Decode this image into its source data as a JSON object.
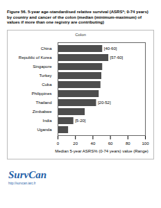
{
  "chart_data": {
    "type": "bar",
    "orientation": "horizontal",
    "title": "Figure 56. 5-year age-standardised relative survival (ASRS*; 0-74 years) by country and cancer of the colon (median (minimum-maximum) of values if more than one registry are contributing)",
    "subtitle": "Colon",
    "categories": [
      "China",
      "Republic of Korea",
      "Singapore",
      "Turkey",
      "Cuba",
      "Philippines",
      "Thailand",
      "Zimbabwe",
      "India",
      "Uganda"
    ],
    "values": [
      51,
      58,
      51,
      50,
      49,
      47,
      44,
      31,
      18,
      12
    ],
    "range_labels": [
      "[40-60]",
      "[57-60]",
      null,
      null,
      null,
      null,
      "[20-52]",
      null,
      "[5-20]",
      null
    ],
    "color": "#4d4d4d",
    "xlim": [
      0,
      100
    ],
    "xticks": [
      0,
      20,
      40,
      60,
      80,
      100
    ],
    "xlabel": "Median 5-year ASRS% (0-74 years) value (Range)",
    "grid": false
  },
  "logo": "SurvCan",
  "url": "http://survcan.iarc.fr"
}
